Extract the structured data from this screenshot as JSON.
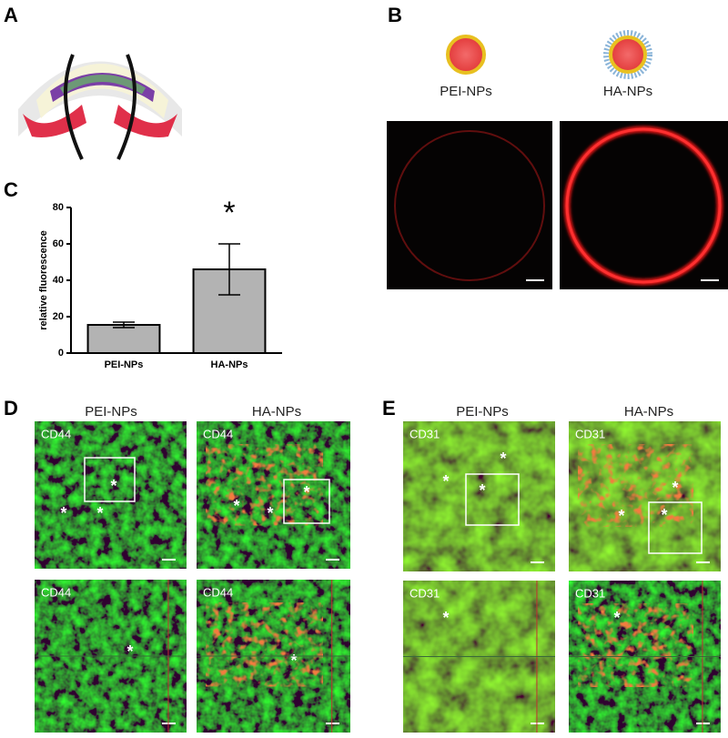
{
  "panel_labels": [
    "A",
    "B",
    "C",
    "D",
    "E"
  ],
  "panel_b": {
    "labels": [
      "PEI-NPs",
      "HA-NPs"
    ]
  },
  "panel_d": {
    "headers": [
      "PEI-NPs",
      "HA-NPs"
    ],
    "image_labels": [
      "CD44",
      "CD44",
      "CD44",
      "CD44"
    ]
  },
  "panel_e": {
    "headers": [
      "PEI-NPs",
      "HA-NPs"
    ],
    "image_labels": [
      "CD31",
      "CD31",
      "CD31",
      "CD31"
    ]
  },
  "micrograph_marker": "*",
  "chart_data": {
    "type": "bar",
    "categories": [
      "PEI-NPs",
      "HA-NPs"
    ],
    "values": [
      15.5,
      46
    ],
    "errors": [
      1.5,
      14
    ],
    "color": "#b3b3b3",
    "ylabel": "relative fluorescence",
    "annotation": "*",
    "ylim": [
      0,
      80
    ],
    "yticks": [
      0,
      20,
      40,
      60,
      80
    ]
  }
}
